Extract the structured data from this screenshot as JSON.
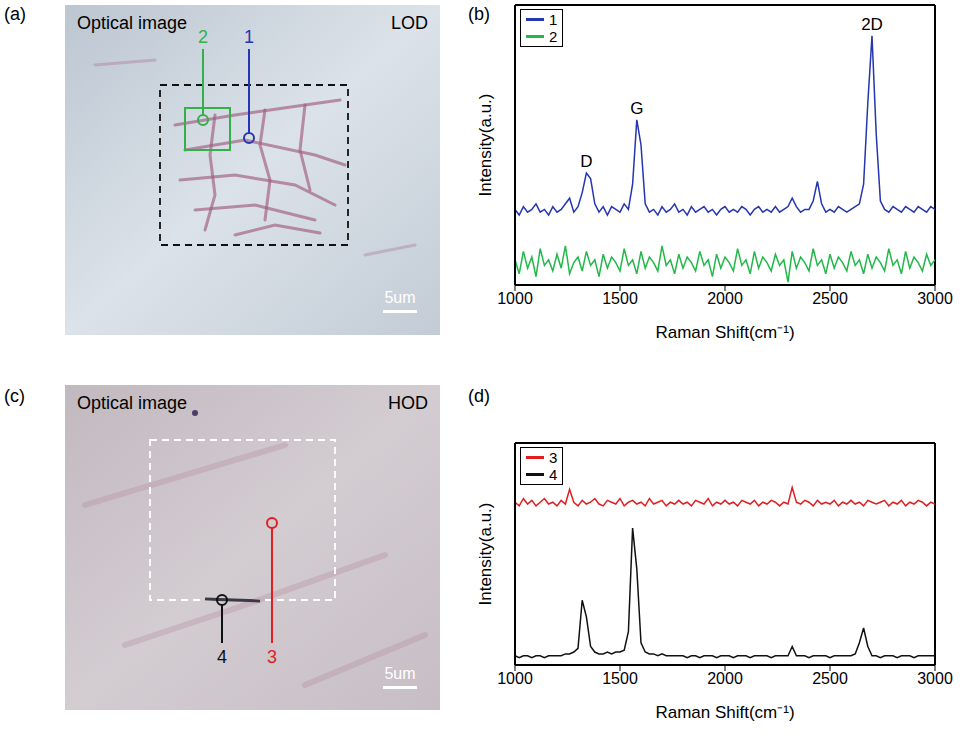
{
  "images": [
    {
      "panel": "(a)",
      "title": "Optical image",
      "tag": "LOD",
      "scale_bar": "5um",
      "markers": [
        {
          "label": "2",
          "color": "#33b04a"
        },
        {
          "label": "1",
          "color": "#2436b0"
        }
      ]
    },
    {
      "panel": "(c)",
      "title": "Optical image",
      "tag": "HOD",
      "scale_bar": "5um",
      "markers": [
        {
          "label": "4",
          "color": "#111111"
        },
        {
          "label": "3",
          "color": "#e02020"
        }
      ]
    }
  ],
  "chart_data": [
    {
      "panel": "(b)",
      "type": "line",
      "x_label": "Raman Shift(cm⁻¹)",
      "y_label": "Intensity(a.u.)",
      "xlim": [
        1000,
        3000
      ],
      "xticks": [
        1000,
        1500,
        2000,
        2500,
        3000
      ],
      "ylim": [
        0,
        10
      ],
      "tick_labels": "x",
      "legend": "upper left",
      "x": [
        1000,
        1020,
        1040,
        1060,
        1080,
        1100,
        1120,
        1140,
        1160,
        1180,
        1200,
        1220,
        1240,
        1260,
        1280,
        1300,
        1320,
        1340,
        1360,
        1380,
        1400,
        1420,
        1440,
        1460,
        1480,
        1500,
        1520,
        1540,
        1560,
        1580,
        1600,
        1620,
        1640,
        1660,
        1680,
        1700,
        1720,
        1740,
        1760,
        1780,
        1800,
        1820,
        1840,
        1860,
        1880,
        1900,
        1920,
        1940,
        1960,
        1980,
        2000,
        2020,
        2040,
        2060,
        2080,
        2100,
        2120,
        2140,
        2160,
        2180,
        2200,
        2220,
        2240,
        2260,
        2280,
        2300,
        2320,
        2340,
        2360,
        2380,
        2400,
        2420,
        2440,
        2460,
        2480,
        2500,
        2520,
        2540,
        2560,
        2580,
        2600,
        2620,
        2640,
        2660,
        2680,
        2700,
        2720,
        2740,
        2760,
        2780,
        2800,
        2820,
        2840,
        2860,
        2880,
        2900,
        2920,
        2940,
        2960,
        2980,
        3000
      ],
      "series": [
        {
          "name": "1",
          "color": "#2436b0",
          "values": [
            2.7,
            2.5,
            2.8,
            2.6,
            2.7,
            2.9,
            2.6,
            2.7,
            2.5,
            2.8,
            2.6,
            2.7,
            2.9,
            3.1,
            2.6,
            2.8,
            3.3,
            4.0,
            3.8,
            2.9,
            2.6,
            2.8,
            2.5,
            2.8,
            2.7,
            2.6,
            2.9,
            2.7,
            3.6,
            5.9,
            5.0,
            2.9,
            2.6,
            2.7,
            2.5,
            2.8,
            2.6,
            2.7,
            2.9,
            2.6,
            2.7,
            2.5,
            2.8,
            2.6,
            2.7,
            2.8,
            2.6,
            2.7,
            2.5,
            2.7,
            2.8,
            2.6,
            2.7,
            2.6,
            2.8,
            2.7,
            2.5,
            2.7,
            2.8,
            2.6,
            2.7,
            2.6,
            2.8,
            2.6,
            2.7,
            2.8,
            3.1,
            2.8,
            2.6,
            2.7,
            2.7,
            3.0,
            3.7,
            2.9,
            2.6,
            2.7,
            2.6,
            2.8,
            2.7,
            2.6,
            2.7,
            2.8,
            2.9,
            3.6,
            6.5,
            8.9,
            5.4,
            3.0,
            2.7,
            2.6,
            2.8,
            2.7,
            2.6,
            2.8,
            2.7,
            2.6,
            2.8,
            2.7,
            2.6,
            2.8,
            2.7
          ]
        },
        {
          "name": "2",
          "color": "#22b84a",
          "values": [
            0.9,
            0.4,
            1.2,
            0.6,
            1.0,
            0.3,
            1.3,
            0.7,
            0.9,
            0.5,
            1.1,
            0.6,
            1.4,
            0.4,
            0.8,
            1.0,
            0.5,
            1.2,
            0.7,
            0.9,
            0.3,
            1.1,
            0.6,
            1.0,
            0.8,
            0.5,
            1.3,
            0.7,
            0.9,
            0.4,
            1.2,
            0.6,
            1.0,
            0.8,
            0.5,
            1.4,
            0.7,
            0.9,
            0.4,
            1.1,
            0.6,
            1.0,
            0.8,
            0.5,
            1.2,
            0.7,
            0.9,
            0.3,
            1.1,
            0.6,
            1.0,
            0.8,
            0.5,
            1.3,
            0.7,
            0.9,
            0.4,
            1.2,
            0.6,
            1.0,
            0.8,
            0.5,
            1.1,
            0.7,
            0.9,
            0.1,
            1.2,
            0.6,
            1.0,
            0.8,
            0.5,
            1.3,
            0.7,
            0.9,
            0.4,
            1.1,
            0.6,
            1.0,
            0.8,
            0.5,
            1.2,
            0.7,
            0.9,
            0.4,
            1.1,
            0.6,
            1.0,
            0.8,
            0.5,
            1.3,
            0.7,
            0.9,
            0.4,
            1.2,
            0.6,
            1.0,
            0.8,
            0.5,
            1.1,
            0.7,
            0.9
          ]
        }
      ],
      "annotations": [
        {
          "text": "D",
          "x": 1340,
          "y": 4.0
        },
        {
          "text": "G",
          "x": 1580,
          "y": 5.9
        },
        {
          "text": "2D",
          "x": 2700,
          "y": 8.9
        }
      ]
    },
    {
      "panel": "(d)",
      "type": "line",
      "x_label": "Raman Shift(cm⁻¹)",
      "y_label": "Intensity(a.u.)",
      "xlim": [
        1000,
        3000
      ],
      "xticks": [
        1000,
        1500,
        2000,
        2500,
        3000
      ],
      "ylim": [
        0,
        12
      ],
      "tick_labels": "x",
      "legend": "upper left",
      "x": [
        1000,
        1020,
        1040,
        1060,
        1080,
        1100,
        1120,
        1140,
        1160,
        1180,
        1200,
        1220,
        1240,
        1260,
        1280,
        1300,
        1320,
        1340,
        1360,
        1380,
        1400,
        1420,
        1440,
        1460,
        1480,
        1500,
        1520,
        1540,
        1560,
        1580,
        1600,
        1620,
        1640,
        1660,
        1680,
        1700,
        1720,
        1740,
        1760,
        1780,
        1800,
        1820,
        1840,
        1860,
        1880,
        1900,
        1920,
        1940,
        1960,
        1980,
        2000,
        2020,
        2040,
        2060,
        2080,
        2100,
        2120,
        2140,
        2160,
        2180,
        2200,
        2220,
        2240,
        2260,
        2280,
        2300,
        2320,
        2340,
        2360,
        2380,
        2400,
        2420,
        2440,
        2460,
        2480,
        2500,
        2520,
        2540,
        2560,
        2580,
        2600,
        2620,
        2640,
        2660,
        2680,
        2700,
        2720,
        2740,
        2760,
        2780,
        2800,
        2820,
        2840,
        2860,
        2880,
        2900,
        2920,
        2940,
        2960,
        2980,
        3000
      ],
      "series": [
        {
          "name": "3",
          "color": "#e02020",
          "values": [
            8.8,
            8.6,
            9.0,
            8.7,
            8.9,
            8.6,
            8.8,
            9.0,
            8.7,
            8.8,
            8.6,
            8.9,
            8.7,
            9.5,
            8.8,
            8.6,
            8.9,
            8.7,
            8.8,
            9.0,
            8.7,
            8.6,
            8.9,
            8.8,
            8.7,
            9.0,
            8.6,
            8.8,
            8.9,
            8.7,
            8.8,
            8.6,
            9.0,
            8.7,
            8.8,
            8.9,
            8.6,
            8.8,
            8.7,
            8.9,
            8.7,
            8.8,
            8.6,
            8.9,
            8.8,
            8.7,
            9.0,
            8.6,
            8.8,
            8.7,
            8.9,
            8.7,
            8.8,
            8.6,
            8.9,
            8.8,
            8.7,
            8.9,
            8.6,
            8.8,
            8.7,
            8.9,
            8.8,
            8.6,
            8.8,
            8.7,
            9.6,
            8.8,
            8.7,
            8.9,
            8.8,
            8.6,
            8.9,
            8.7,
            8.8,
            8.7,
            8.9,
            8.6,
            8.8,
            8.7,
            8.9,
            8.7,
            8.8,
            8.6,
            8.9,
            8.8,
            8.7,
            8.8,
            8.9,
            8.6,
            8.8,
            8.7,
            8.9,
            8.6,
            8.8,
            8.7,
            8.9,
            8.8,
            8.6,
            8.8,
            8.7
          ]
        },
        {
          "name": "4",
          "color": "#111111",
          "values": [
            0.5,
            0.4,
            0.5,
            0.5,
            0.4,
            0.5,
            0.5,
            0.4,
            0.5,
            0.5,
            0.5,
            0.5,
            0.6,
            0.6,
            0.7,
            0.9,
            3.5,
            2.6,
            1.0,
            0.7,
            0.6,
            0.6,
            0.7,
            0.6,
            0.7,
            0.7,
            0.8,
            1.8,
            7.4,
            5.2,
            1.2,
            0.7,
            0.6,
            0.6,
            0.5,
            0.6,
            0.5,
            0.5,
            0.5,
            0.5,
            0.5,
            0.4,
            0.5,
            0.5,
            0.4,
            0.5,
            0.5,
            0.5,
            0.4,
            0.5,
            0.5,
            0.5,
            0.4,
            0.5,
            0.5,
            0.5,
            0.4,
            0.5,
            0.5,
            0.5,
            0.5,
            0.4,
            0.5,
            0.5,
            0.5,
            0.5,
            1.0,
            0.5,
            0.5,
            0.5,
            0.4,
            0.5,
            0.5,
            0.5,
            0.5,
            0.4,
            0.5,
            0.5,
            0.5,
            0.5,
            0.5,
            0.6,
            1.2,
            2.0,
            1.0,
            0.5,
            0.5,
            0.4,
            0.5,
            0.5,
            0.5,
            0.4,
            0.5,
            0.5,
            0.5,
            0.4,
            0.5,
            0.5,
            0.5,
            0.5,
            0.5
          ]
        }
      ]
    }
  ]
}
